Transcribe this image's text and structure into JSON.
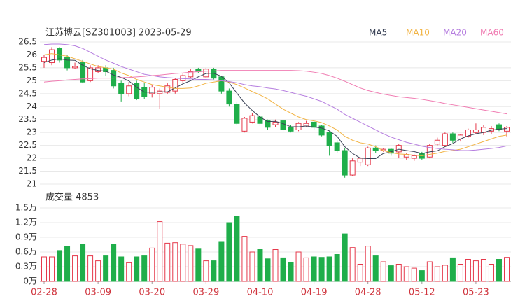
{
  "chart_data": {
    "type": "candlestick",
    "title": "江苏博云[SZ301003] 2023-05-29",
    "categories": [
      "02-28",
      null,
      null,
      null,
      null,
      null,
      null,
      "03-09",
      null,
      null,
      null,
      null,
      null,
      null,
      "03-20",
      null,
      null,
      null,
      null,
      null,
      null,
      "03-29",
      null,
      null,
      null,
      null,
      null,
      null,
      "04-10",
      null,
      null,
      null,
      null,
      null,
      null,
      "04-19",
      null,
      null,
      null,
      null,
      null,
      null,
      "04-28",
      null,
      null,
      null,
      null,
      null,
      null,
      "05-12",
      null,
      null,
      null,
      null,
      null,
      null,
      "05-23",
      null,
      null,
      null,
      null
    ],
    "open": [
      25.75,
      25.7,
      26.25,
      25.9,
      25.5,
      25.7,
      25.0,
      25.35,
      25.5,
      25.4,
      24.9,
      24.5,
      24.9,
      24.75,
      24.5,
      24.5,
      24.55,
      24.6,
      25.0,
      25.15,
      25.45,
      25.15,
      25.45,
      25.15,
      24.6,
      24.1,
      23.05,
      23.4,
      23.6,
      23.45,
      23.3,
      23.45,
      23.2,
      23.1,
      23.25,
      23.4,
      23.25,
      23.0,
      22.6,
      22.3,
      21.35,
      21.85,
      21.75,
      22.4,
      22.3,
      22.35,
      22.25,
      22.05,
      22.0,
      22.2,
      22.05,
      22.55,
      22.5,
      22.95,
      22.75,
      22.85,
      23.0,
      23.0,
      23.05,
      23.3,
      23.05
    ],
    "high": [
      26.0,
      26.3,
      26.3,
      26.0,
      25.7,
      25.8,
      25.6,
      25.6,
      25.6,
      25.5,
      25.0,
      24.95,
      25.0,
      24.9,
      24.85,
      24.7,
      24.9,
      25.1,
      25.3,
      25.45,
      25.5,
      25.5,
      25.5,
      25.2,
      24.7,
      24.2,
      23.6,
      23.75,
      23.65,
      23.5,
      23.5,
      23.5,
      23.3,
      23.4,
      23.45,
      23.45,
      23.3,
      23.05,
      22.7,
      22.4,
      22.0,
      22.05,
      22.45,
      22.5,
      22.4,
      22.4,
      22.55,
      22.2,
      22.15,
      22.25,
      22.55,
      22.8,
      23.0,
      23.0,
      22.95,
      23.15,
      23.35,
      23.3,
      23.25,
      23.35,
      23.25
    ],
    "low": [
      25.5,
      25.6,
      25.7,
      25.4,
      25.45,
      24.9,
      24.95,
      25.3,
      25.2,
      24.7,
      24.2,
      24.4,
      24.25,
      24.3,
      24.35,
      23.9,
      24.5,
      24.5,
      24.9,
      25.1,
      25.3,
      25.1,
      25.05,
      24.5,
      24.0,
      23.3,
      23.0,
      23.35,
      23.25,
      23.1,
      23.2,
      23.0,
      23.0,
      23.05,
      23.2,
      23.1,
      22.85,
      22.1,
      22.2,
      21.25,
      21.3,
      21.7,
      21.7,
      22.2,
      22.25,
      22.1,
      22.0,
      21.95,
      21.9,
      21.95,
      22.0,
      22.5,
      22.45,
      22.6,
      22.65,
      22.8,
      22.95,
      22.9,
      22.95,
      23.05,
      22.85
    ],
    "close": [
      25.9,
      26.2,
      25.8,
      25.5,
      25.55,
      24.95,
      25.5,
      25.5,
      25.35,
      24.8,
      24.5,
      24.8,
      24.3,
      24.4,
      24.75,
      24.6,
      24.8,
      25.05,
      25.2,
      25.35,
      25.35,
      25.45,
      25.1,
      24.6,
      24.1,
      23.35,
      23.55,
      23.65,
      23.35,
      23.2,
      23.4,
      23.1,
      23.05,
      23.35,
      23.35,
      23.2,
      22.9,
      22.5,
      22.3,
      21.35,
      21.9,
      22.0,
      22.4,
      22.3,
      22.35,
      22.2,
      22.5,
      22.15,
      22.1,
      22.0,
      22.5,
      22.7,
      22.95,
      22.7,
      22.9,
      23.1,
      23.1,
      23.2,
      23.15,
      23.1,
      23.2
    ],
    "up_color": "#e5394b",
    "down_color": "#1fae4a",
    "ma": [
      {
        "name": "MA5",
        "color": "#3a4256",
        "values": [
          25.7,
          25.8,
          25.85,
          25.8,
          25.79,
          25.6,
          25.46,
          25.4,
          25.37,
          25.22,
          25.13,
          24.99,
          24.75,
          24.56,
          24.55,
          24.57,
          24.57,
          24.72,
          24.88,
          25.0,
          25.15,
          25.28,
          25.29,
          25.17,
          24.92,
          24.52,
          24.14,
          23.85,
          23.6,
          23.42,
          23.43,
          23.34,
          23.22,
          23.22,
          23.25,
          23.21,
          23.17,
          23.06,
          22.85,
          22.45,
          22.19,
          22.01,
          21.99,
          21.99,
          22.19,
          22.25,
          22.35,
          22.3,
          22.26,
          22.19,
          22.25,
          22.29,
          22.45,
          22.57,
          22.75,
          22.87,
          22.95,
          23.0,
          23.09,
          23.13,
          23.15
        ]
      },
      {
        "name": "MA10",
        "color": "#f2b445",
        "values": [
          26.0,
          26.05,
          26.0,
          25.95,
          25.85,
          25.75,
          25.65,
          25.55,
          25.5,
          25.45,
          25.3,
          25.2,
          25.05,
          24.95,
          24.85,
          24.8,
          24.75,
          24.7,
          24.7,
          24.72,
          24.8,
          24.9,
          24.95,
          25.0,
          24.95,
          24.85,
          24.72,
          24.58,
          24.45,
          24.3,
          24.1,
          23.9,
          23.75,
          23.6,
          23.5,
          23.45,
          23.38,
          23.25,
          23.1,
          22.85,
          22.7,
          22.6,
          22.55,
          22.45,
          22.3,
          22.22,
          22.17,
          22.15,
          22.12,
          22.1,
          22.15,
          22.2,
          22.27,
          22.3,
          22.35,
          22.45,
          22.55,
          22.65,
          22.75,
          22.85,
          22.9
        ]
      },
      {
        "name": "MA20",
        "color": "#b57ddf",
        "values": [
          26.4,
          26.42,
          26.42,
          26.4,
          26.35,
          26.25,
          26.1,
          25.95,
          25.8,
          25.68,
          25.55,
          25.45,
          25.35,
          25.25,
          25.2,
          25.15,
          25.12,
          25.1,
          25.08,
          25.07,
          25.05,
          25.05,
          25.03,
          25.0,
          24.97,
          24.92,
          24.85,
          24.8,
          24.77,
          24.72,
          24.68,
          24.62,
          24.55,
          24.47,
          24.4,
          24.3,
          24.2,
          24.05,
          23.9,
          23.7,
          23.55,
          23.4,
          23.25,
          23.1,
          22.95,
          22.82,
          22.72,
          22.62,
          22.55,
          22.47,
          22.42,
          22.38,
          22.35,
          22.33,
          22.3,
          22.3,
          22.32,
          22.35,
          22.38,
          22.42,
          22.48
        ]
      },
      {
        "name": "MA60",
        "color": "#f07cb2",
        "values": [
          24.95,
          24.98,
          25.0,
          25.03,
          25.05,
          25.07,
          25.08,
          25.1,
          25.1,
          25.1,
          25.12,
          25.13,
          25.15,
          25.17,
          25.2,
          25.22,
          25.25,
          25.28,
          25.3,
          25.33,
          25.35,
          25.37,
          25.38,
          25.4,
          25.4,
          25.4,
          25.4,
          25.4,
          25.4,
          25.4,
          25.4,
          25.4,
          25.4,
          25.39,
          25.37,
          25.33,
          25.28,
          25.2,
          25.1,
          24.98,
          24.85,
          24.72,
          24.62,
          24.55,
          24.48,
          24.43,
          24.38,
          24.35,
          24.32,
          24.28,
          24.23,
          24.18,
          24.12,
          24.07,
          24.02,
          23.97,
          23.92,
          23.87,
          23.82,
          23.77,
          23.72
        ]
      }
    ],
    "ylim": [
      21,
      26.5
    ],
    "yticks": [
      26.5,
      26,
      25.5,
      25,
      24.5,
      24,
      23.5,
      23,
      22.5,
      22,
      21.5,
      21
    ],
    "grid": true,
    "volume": {
      "title": "成交量 4853",
      "values": [
        0.5,
        0.5,
        0.63,
        0.72,
        0.52,
        0.75,
        0.52,
        0.42,
        0.52,
        0.76,
        0.5,
        0.38,
        0.5,
        0.52,
        0.68,
        1.22,
        0.78,
        0.79,
        0.76,
        0.73,
        0.66,
        0.42,
        0.42,
        0.8,
        1.2,
        1.33,
        0.92,
        0.6,
        0.65,
        0.46,
        0.65,
        0.48,
        0.38,
        0.6,
        0.48,
        0.5,
        0.49,
        0.5,
        0.55,
        0.97,
        0.69,
        0.35,
        0.72,
        0.52,
        0.4,
        0.32,
        0.35,
        0.3,
        0.27,
        0.22,
        0.4,
        0.3,
        0.33,
        0.48,
        0.35,
        0.45,
        0.42,
        0.45,
        0.35,
        0.45,
        0.49
      ],
      "ylim": [
        0,
        1.5
      ],
      "yticks": [
        {
          "value": 0,
          "label": "0万"
        },
        {
          "value": 0.3,
          "label": "0.3万"
        },
        {
          "value": 0.6,
          "label": "0.6万"
        },
        {
          "value": 0.9,
          "label": "0.9万"
        },
        {
          "value": 1.2,
          "label": "1.2万"
        },
        {
          "value": 1.5,
          "label": "1.5万"
        }
      ]
    }
  }
}
